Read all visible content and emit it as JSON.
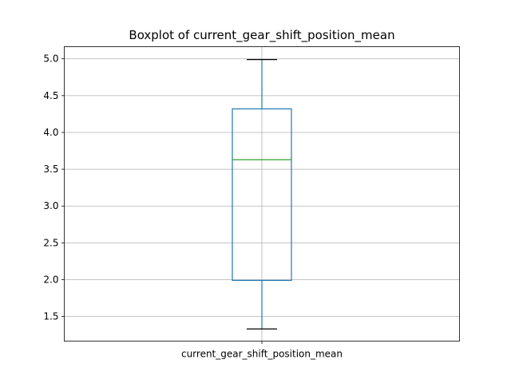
{
  "chart_data": {
    "type": "boxplot",
    "title": "Boxplot of current_gear_shift_position_mean",
    "xlabel": "",
    "ylabel": "",
    "categories": [
      "current_gear_shift_position_mean"
    ],
    "boxes": [
      {
        "category": "current_gear_shift_position_mean",
        "whisker_low": 1.33,
        "q1": 1.99,
        "median": 3.63,
        "q3": 4.32,
        "whisker_high": 4.99
      }
    ],
    "yticks": [
      1.5,
      2.0,
      2.5,
      3.0,
      3.5,
      4.0,
      4.5,
      5.0
    ],
    "ytick_labels": [
      "1.5",
      "2.0",
      "2.5",
      "3.0",
      "3.5",
      "4.0",
      "4.5",
      "5.0"
    ],
    "ylim": [
      1.165,
      5.165
    ],
    "grid": true,
    "colors": {
      "box": "#1f77b4",
      "median": "#2ca02c",
      "caps": "#000000",
      "grid": "#b0b0b0",
      "axes": "#000000"
    }
  }
}
